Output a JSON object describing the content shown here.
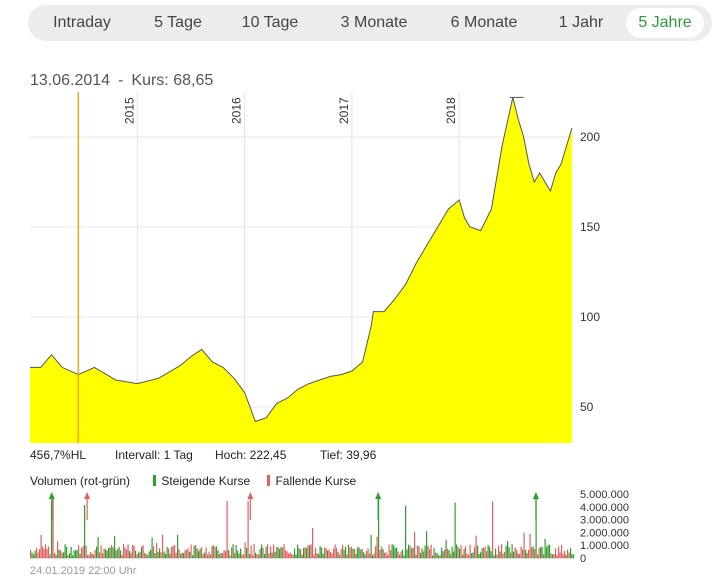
{
  "tabs": [
    {
      "label": "Intraday",
      "active": false
    },
    {
      "label": "5 Tage",
      "active": false
    },
    {
      "label": "10 Tage",
      "active": false
    },
    {
      "label": "3 Monate",
      "active": false
    },
    {
      "label": "6 Monate",
      "active": false
    },
    {
      "label": "1 Jahr",
      "active": false
    },
    {
      "label": "5 Jahre",
      "active": true
    }
  ],
  "header": {
    "date": "13.06.2014",
    "separator": "-",
    "kurs": "Kurs: 68,65"
  },
  "stats": {
    "change": "456,7%HL",
    "interval": "Intervall: 1 Tag",
    "high": "Hoch:  222,45",
    "low": "Tief:  39,96"
  },
  "volume_legend": {
    "title": "Volumen (rot-grün)",
    "rising": "Steigende Kurse",
    "falling": "Fallende Kurse"
  },
  "footer": "24.01.2019 22:00 Uhr",
  "colors": {
    "area": "#ffff00",
    "line": "#555555",
    "marker": "#f5a623",
    "rising": "#2ca02c",
    "falling": "#e06060",
    "accent": "#2e9a3a"
  },
  "chart_data": [
    {
      "type": "area",
      "x_labels": [
        "2015",
        "2016",
        "2017",
        "2018"
      ],
      "y_ticks": [
        "50",
        "100",
        "150",
        "200"
      ],
      "ylim": [
        30,
        225
      ],
      "grid": true,
      "x": [
        2014.1,
        2014.2,
        2014.3,
        2014.45,
        2014.6,
        2014.8,
        2015.0,
        2015.2,
        2015.4,
        2015.5,
        2015.6,
        2015.7,
        2015.8,
        2015.9,
        2016.0,
        2016.05,
        2016.1,
        2016.2,
        2016.3,
        2016.4,
        2016.5,
        2016.6,
        2016.7,
        2016.8,
        2016.9,
        2017.0,
        2017.1,
        2017.18,
        2017.2,
        2017.3,
        2017.4,
        2017.5,
        2017.6,
        2017.7,
        2017.8,
        2017.9,
        2018.0,
        2018.05,
        2018.1,
        2018.2,
        2018.3,
        2018.4,
        2018.5,
        2018.55,
        2018.6,
        2018.65,
        2018.7,
        2018.75,
        2018.8,
        2018.85,
        2018.9,
        2018.95,
        2019.05
      ],
      "values": [
        72,
        79,
        72,
        68,
        72,
        65,
        63,
        66,
        73,
        78,
        82,
        75,
        72,
        66,
        58,
        50,
        42,
        44,
        52,
        55,
        60,
        63,
        65,
        67,
        68,
        70,
        75,
        95,
        103,
        103,
        110,
        118,
        130,
        140,
        150,
        160,
        165,
        155,
        150,
        148,
        160,
        195,
        222,
        210,
        200,
        185,
        175,
        180,
        175,
        170,
        180,
        185,
        205
      ]
    },
    {
      "type": "bar",
      "title": "Volumen (rot-grün)",
      "y_ticks": [
        "5.000.000",
        "4.000.000",
        "3.000.000",
        "2.000.000",
        "1.000.000",
        "0"
      ],
      "ylim": [
        0,
        5000000
      ]
    }
  ],
  "marker": {
    "x": 2014.45
  }
}
